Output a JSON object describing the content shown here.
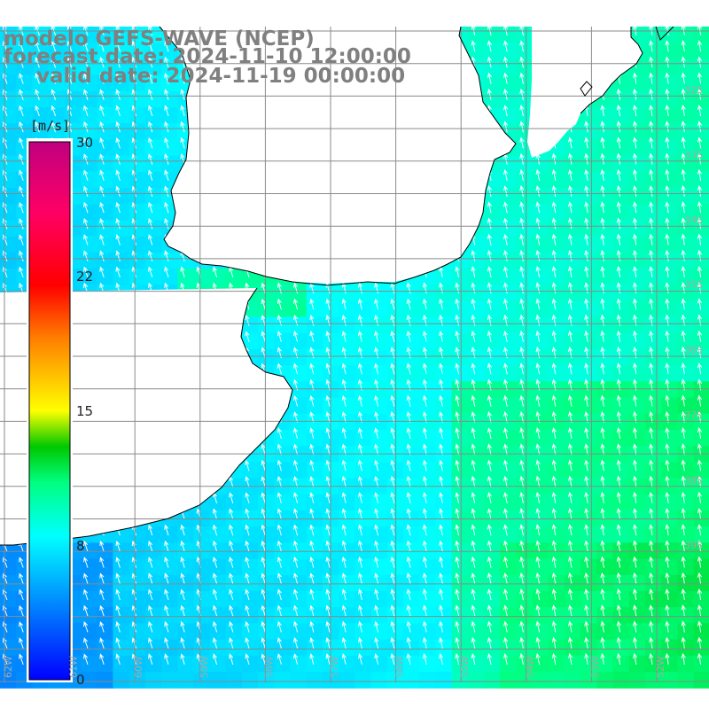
{
  "header": {
    "line1": "modelo GEFS-WAVE (NCEP)",
    "line2": "forecast date: 2024-11-10 12:00:00",
    "line3": "valid date: 2024-11-19 00:00:00"
  },
  "colorbar": {
    "unit": "[m/s]",
    "ticks": [
      "30",
      "22",
      "15",
      "8",
      "0"
    ],
    "range": [
      0,
      30
    ],
    "stops": [
      {
        "v": 0,
        "c": "#0000ff"
      },
      {
        "v": 4,
        "c": "#0080ff"
      },
      {
        "v": 8,
        "c": "#00ffff"
      },
      {
        "v": 11,
        "c": "#00ff80"
      },
      {
        "v": 13,
        "c": "#00c800"
      },
      {
        "v": 15,
        "c": "#ffff00"
      },
      {
        "v": 19,
        "c": "#ff8000"
      },
      {
        "v": 22,
        "c": "#ff0000"
      },
      {
        "v": 26,
        "c": "#ff0064"
      },
      {
        "v": 30,
        "c": "#c00080"
      }
    ]
  },
  "map": {
    "field": "wind speed",
    "land_color": "#ffffff",
    "coast_color": "#000000",
    "grid_color": "#8a8a8a",
    "arrow_color": "#ffffff",
    "lat_labels": [
      "32S",
      "33S",
      "34S",
      "35S",
      "36S",
      "37S",
      "38S",
      "39S"
    ],
    "lon_labels": [
      "62W",
      "61W",
      "60W",
      "59W",
      "58W",
      "57W",
      "56W",
      "55W",
      "54W",
      "53W",
      "52W",
      "51W"
    ]
  }
}
